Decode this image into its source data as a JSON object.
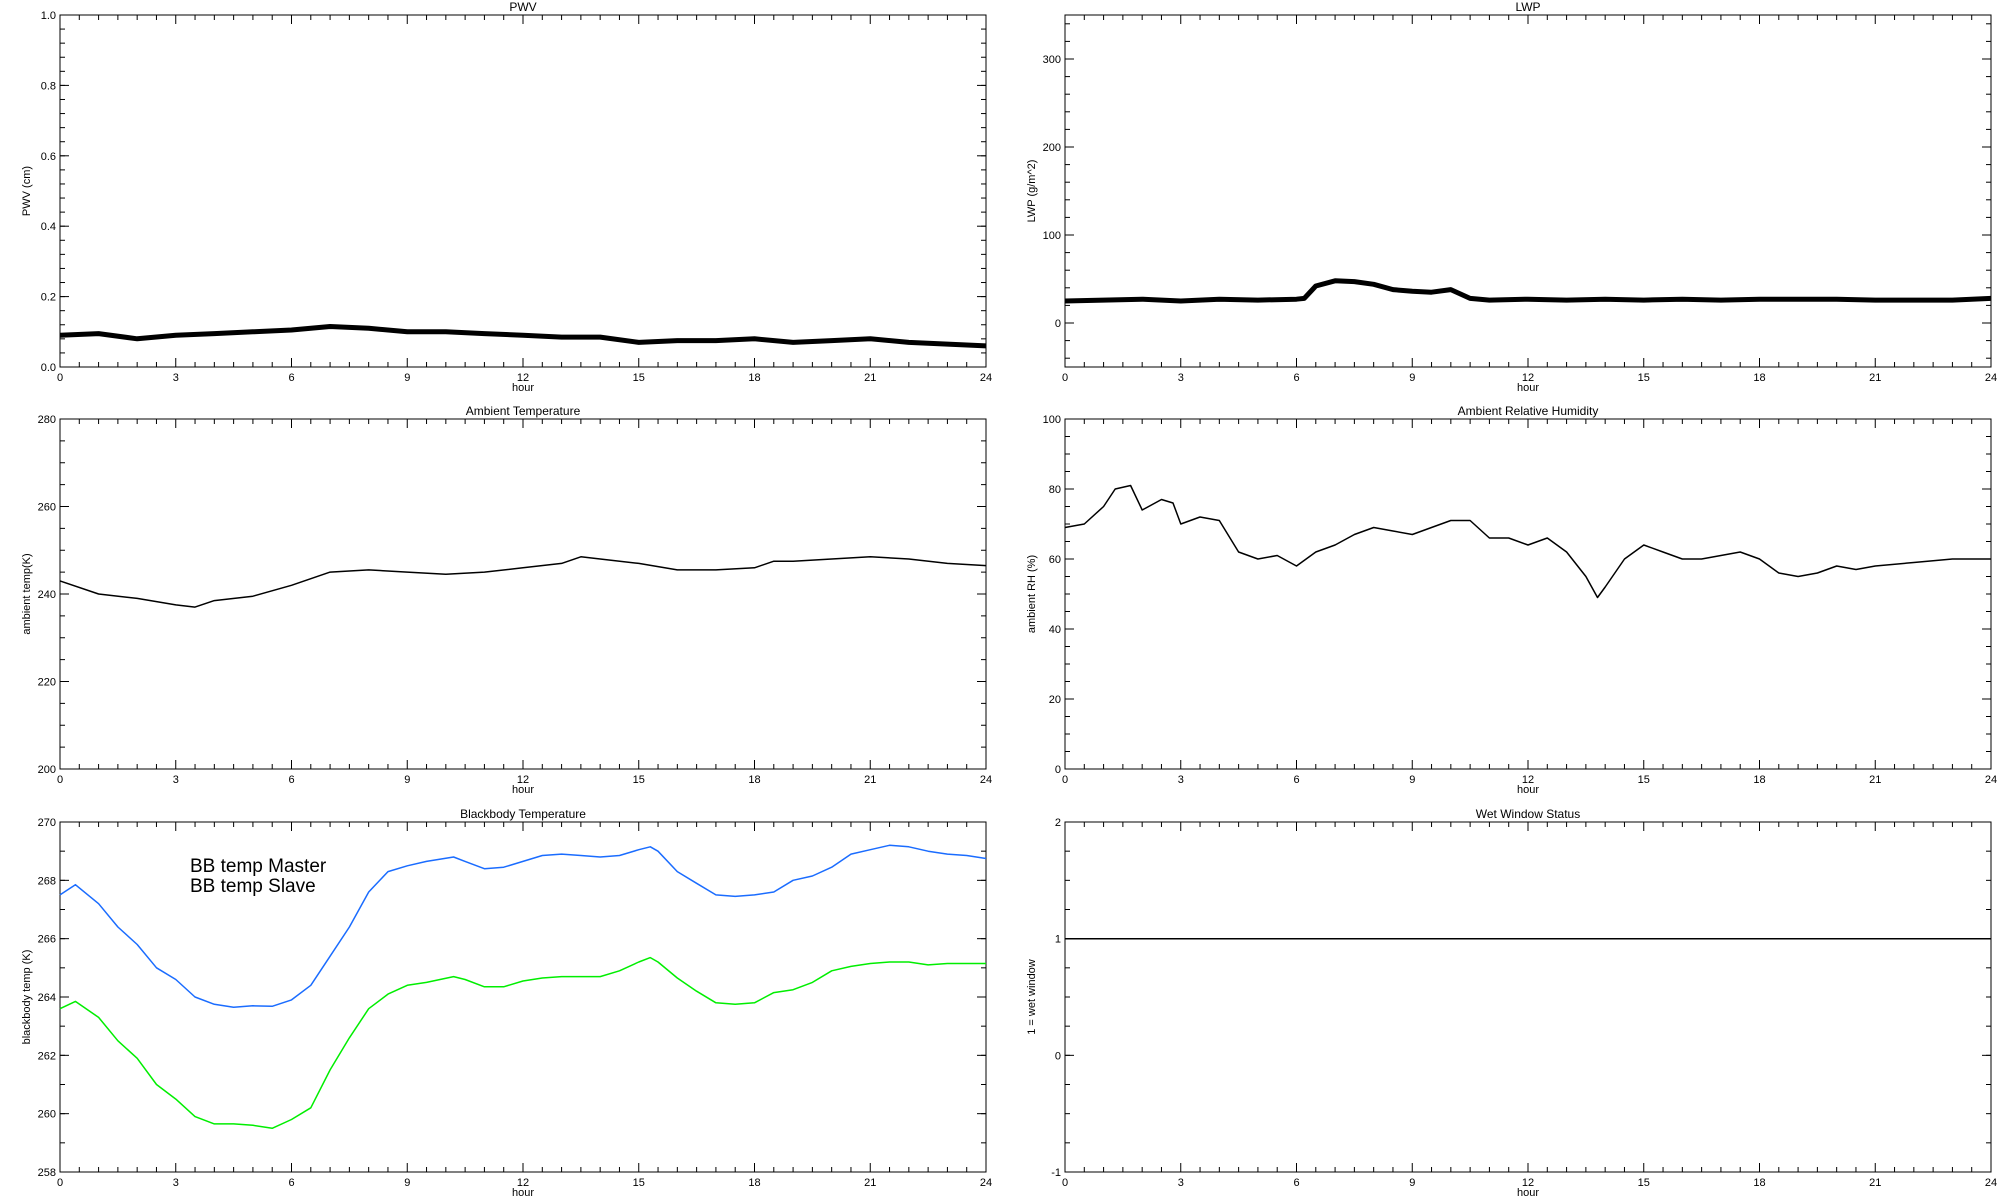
{
  "chart_data": [
    {
      "type": "line",
      "title": "PWV",
      "xlabel": "hour",
      "ylabel": "PWV (cm)",
      "xlim": [
        0,
        24
      ],
      "ylim": [
        0,
        1.0
      ],
      "xticks": [
        "0",
        "3",
        "6",
        "9",
        "12",
        "15",
        "18",
        "21",
        "24"
      ],
      "yticks": [
        "0.0",
        "0.2",
        "0.4",
        "0.6",
        "0.8",
        "1.0"
      ],
      "series": [
        {
          "name": "PWV",
          "color": "#000000",
          "x": [
            0,
            1,
            2,
            3,
            4,
            5,
            6,
            7,
            8,
            9,
            10,
            11,
            12,
            13,
            14,
            15,
            16,
            17,
            18,
            19,
            20,
            21,
            22,
            23,
            24
          ],
          "y": [
            0.09,
            0.095,
            0.08,
            0.09,
            0.095,
            0.1,
            0.105,
            0.115,
            0.11,
            0.1,
            0.1,
            0.095,
            0.09,
            0.085,
            0.085,
            0.07,
            0.075,
            0.075,
            0.08,
            0.07,
            0.075,
            0.08,
            0.07,
            0.065,
            0.06
          ]
        }
      ]
    },
    {
      "type": "line",
      "title": "LWP",
      "xlabel": "hour",
      "ylabel": "LWP (g/m^2)",
      "xlim": [
        0,
        24
      ],
      "ylim": [
        -50,
        350
      ],
      "xticks": [
        "0",
        "3",
        "6",
        "9",
        "12",
        "15",
        "18",
        "21",
        "24"
      ],
      "yticks": [
        "0",
        "100",
        "200",
        "300"
      ],
      "series": [
        {
          "name": "LWP",
          "color": "#000000",
          "x": [
            0,
            1,
            2,
            3,
            4,
            5,
            6,
            6.2,
            6.5,
            7,
            7.5,
            8,
            8.5,
            9,
            9.5,
            10,
            10.5,
            11,
            12,
            13,
            14,
            15,
            16,
            17,
            18,
            19,
            20,
            21,
            22,
            23,
            24
          ],
          "y": [
            25,
            26,
            27,
            25,
            27,
            26,
            27,
            28,
            42,
            48,
            47,
            44,
            38,
            36,
            35,
            38,
            28,
            26,
            27,
            26,
            27,
            26,
            27,
            26,
            27,
            27,
            27,
            26,
            26,
            26,
            28
          ]
        }
      ]
    },
    {
      "type": "line",
      "title": "Ambient Temperature",
      "xlabel": "hour",
      "ylabel": "ambient temp(K)",
      "xlim": [
        0,
        24
      ],
      "ylim": [
        200,
        280
      ],
      "xticks": [
        "0",
        "3",
        "6",
        "9",
        "12",
        "15",
        "18",
        "21",
        "24"
      ],
      "yticks": [
        "200",
        "220",
        "240",
        "260",
        "280"
      ],
      "series": [
        {
          "name": "ambient temp",
          "color": "#000000",
          "x": [
            0,
            1,
            2,
            3,
            3.5,
            4,
            5,
            6,
            7,
            8,
            9,
            10,
            11,
            12,
            13,
            13.5,
            14,
            15,
            16,
            17,
            18,
            18.5,
            19,
            20,
            21,
            22,
            23,
            24
          ],
          "y": [
            243,
            240,
            239,
            237.5,
            237,
            238.5,
            239.5,
            242,
            245,
            245.5,
            245,
            244.5,
            245,
            246,
            247,
            248.5,
            248,
            247,
            245.5,
            245.5,
            246,
            247.5,
            247.5,
            248,
            248.5,
            248,
            247,
            246.5
          ]
        }
      ]
    },
    {
      "type": "line",
      "title": "Ambient Relative Humidity",
      "xlabel": "hour",
      "ylabel": "ambient RH (%)",
      "xlim": [
        0,
        24
      ],
      "ylim": [
        0,
        100
      ],
      "xticks": [
        "0",
        "3",
        "6",
        "9",
        "12",
        "15",
        "18",
        "21",
        "24"
      ],
      "yticks": [
        "0",
        "20",
        "40",
        "60",
        "80",
        "100"
      ],
      "series": [
        {
          "name": "RH",
          "color": "#000000",
          "x": [
            0,
            0.5,
            1,
            1.3,
            1.7,
            2,
            2.5,
            2.8,
            3,
            3.5,
            4,
            4.5,
            5,
            5.5,
            6,
            6.5,
            7,
            7.5,
            8,
            8.5,
            9,
            9.5,
            10,
            10.5,
            11,
            11.5,
            12,
            12.5,
            13,
            13.5,
            13.8,
            14,
            14.5,
            15,
            15.5,
            16,
            16.5,
            17,
            17.5,
            18,
            18.5,
            19,
            19.5,
            20,
            20.5,
            21,
            22,
            23,
            24
          ],
          "y": [
            69,
            70,
            75,
            80,
            81,
            74,
            77,
            76,
            70,
            72,
            71,
            62,
            60,
            61,
            58,
            62,
            64,
            67,
            69,
            68,
            67,
            69,
            71,
            71,
            66,
            66,
            64,
            66,
            62,
            55,
            49,
            52,
            60,
            64,
            62,
            60,
            60,
            61,
            62,
            60,
            56,
            55,
            56,
            58,
            57,
            58,
            59,
            60,
            60
          ]
        }
      ]
    },
    {
      "type": "line",
      "title": "Blackbody Temperature",
      "xlabel": "hour",
      "ylabel": "blackbody temp (K)",
      "xlim": [
        0,
        24
      ],
      "ylim": [
        258,
        270
      ],
      "xticks": [
        "0",
        "3",
        "6",
        "9",
        "12",
        "15",
        "18",
        "21",
        "24"
      ],
      "yticks": [
        "258",
        "260",
        "262",
        "264",
        "266",
        "268",
        "270"
      ],
      "legend": "top-left",
      "series": [
        {
          "name": "BB temp Master",
          "color": "#1a6cff",
          "x": [
            0,
            0.4,
            1,
            1.5,
            2,
            2.5,
            3,
            3.5,
            4,
            4.5,
            5,
            5.5,
            6,
            6.5,
            7,
            7.5,
            8,
            8.5,
            9,
            9.5,
            10.2,
            10.5,
            11,
            11.5,
            12,
            12.5,
            13,
            13.5,
            14,
            14.5,
            15,
            15.3,
            15.5,
            16,
            16.5,
            17,
            17.5,
            18,
            18.5,
            19,
            19.5,
            20,
            20.5,
            21,
            21.5,
            22,
            22.5,
            23,
            23.5,
            24
          ],
          "y": [
            267.5,
            267.85,
            267.2,
            266.4,
            265.8,
            265.0,
            264.6,
            264.0,
            263.75,
            263.65,
            263.7,
            263.68,
            263.9,
            264.4,
            265.4,
            266.4,
            267.6,
            268.3,
            268.5,
            268.65,
            268.8,
            268.65,
            268.4,
            268.45,
            268.65,
            268.85,
            268.9,
            268.85,
            268.8,
            268.85,
            269.05,
            269.15,
            269.0,
            268.3,
            267.9,
            267.5,
            267.45,
            267.5,
            267.6,
            268.0,
            268.15,
            268.45,
            268.9,
            269.05,
            269.2,
            269.15,
            269.0,
            268.9,
            268.85,
            268.75
          ]
        },
        {
          "name": "BB temp Slave",
          "color": "#00ee00",
          "x": [
            0,
            0.4,
            1,
            1.5,
            2,
            2.5,
            3,
            3.5,
            4,
            4.5,
            5,
            5.5,
            6,
            6.5,
            7,
            7.5,
            8,
            8.5,
            9,
            9.5,
            10.2,
            10.5,
            11,
            11.5,
            12,
            12.5,
            13,
            13.5,
            14,
            14.5,
            15,
            15.3,
            15.5,
            16,
            16.5,
            17,
            17.5,
            18,
            18.5,
            19,
            19.5,
            20,
            20.5,
            21,
            21.5,
            22,
            22.5,
            23,
            24
          ],
          "y": [
            263.6,
            263.85,
            263.3,
            262.5,
            261.9,
            261.0,
            260.5,
            259.9,
            259.65,
            259.65,
            259.6,
            259.5,
            259.8,
            260.2,
            261.5,
            262.6,
            263.6,
            264.1,
            264.4,
            264.5,
            264.7,
            264.6,
            264.35,
            264.35,
            264.55,
            264.65,
            264.7,
            264.7,
            264.7,
            264.9,
            265.2,
            265.35,
            265.2,
            264.65,
            264.2,
            263.8,
            263.75,
            263.8,
            264.15,
            264.25,
            264.5,
            264.9,
            265.05,
            265.15,
            265.2,
            265.2,
            265.1,
            265.15,
            265.15
          ]
        }
      ]
    },
    {
      "type": "line",
      "title": "Wet Window Status",
      "xlabel": "hour",
      "ylabel": "1 = wet window",
      "xlim": [
        0,
        24
      ],
      "ylim": [
        -1,
        2
      ],
      "xticks": [
        "0",
        "3",
        "6",
        "9",
        "12",
        "15",
        "18",
        "21",
        "24"
      ],
      "yticks": [
        "-1",
        "0",
        "1",
        "2"
      ],
      "series": [
        {
          "name": "wet window",
          "color": "#000000",
          "x": [
            0,
            24
          ],
          "y": [
            1,
            1
          ]
        }
      ]
    }
  ]
}
